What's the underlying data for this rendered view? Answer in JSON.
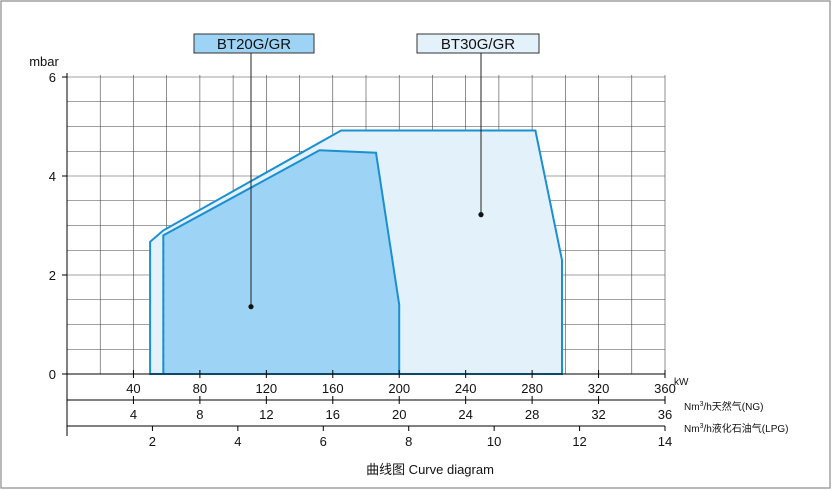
{
  "chart_data": {
    "type": "area",
    "caption": "曲线图  Curve diagram",
    "y_unit": "mbar",
    "ylim": [
      0,
      6
    ],
    "y_ticks": [
      0,
      2,
      4,
      6
    ],
    "grid": true,
    "x_axes": [
      {
        "unit": "kW",
        "range": [
          0,
          360
        ],
        "ticks": [
          40,
          80,
          120,
          160,
          200,
          240,
          280,
          320,
          360
        ],
        "tick_labels": [
          "40",
          "80",
          "120",
          "160",
          "200",
          "240",
          "280",
          "320",
          "360"
        ]
      },
      {
        "unit": "Nm³/h天然气(NG)",
        "unit_base": "Nm",
        "unit_sup": "3",
        "unit_rest": "/h天然气(NG)",
        "range": [
          0,
          36
        ],
        "ticks": [
          4,
          8,
          12,
          16,
          20,
          24,
          28,
          32,
          36
        ],
        "tick_labels": [
          "4",
          "8",
          "12",
          "16",
          "20",
          "24",
          "28",
          "32",
          "36"
        ]
      },
      {
        "unit": "Nm³/h液化石油气(LPG)",
        "unit_base": "Nm",
        "unit_sup": "3",
        "unit_rest": "/h液化石油气(LPG)",
        "range": [
          0,
          14
        ],
        "ticks": [
          2,
          4,
          6,
          8,
          10,
          12,
          14
        ],
        "tick_labels": [
          "2",
          "4",
          "6",
          "8",
          "10",
          "12",
          "14"
        ]
      }
    ],
    "series": [
      {
        "name": "BT30G/GR",
        "fill": "#e3f1fb",
        "stroke": "#1a8fd1",
        "points_kw_mbar": [
          [
            50,
            0
          ],
          [
            50,
            2.67
          ],
          [
            58,
            2.9
          ],
          [
            165,
            4.92
          ],
          [
            282,
            4.92
          ],
          [
            298,
            2.3
          ],
          [
            298,
            0
          ]
        ],
        "label_marker_kw_mbar": [
          246,
          3.22
        ]
      },
      {
        "name": "BT20G/GR",
        "fill": "#9dd4f5",
        "stroke": "#1a8fd1",
        "points_kw_mbar": [
          [
            58,
            0
          ],
          [
            58,
            2.8
          ],
          [
            152,
            4.52
          ],
          [
            186,
            4.47
          ],
          [
            200,
            1.4
          ],
          [
            200,
            0
          ]
        ],
        "label_marker_kw_mbar": [
          110,
          1.36
        ],
        "dashed_edge_kw": 58
      }
    ]
  }
}
